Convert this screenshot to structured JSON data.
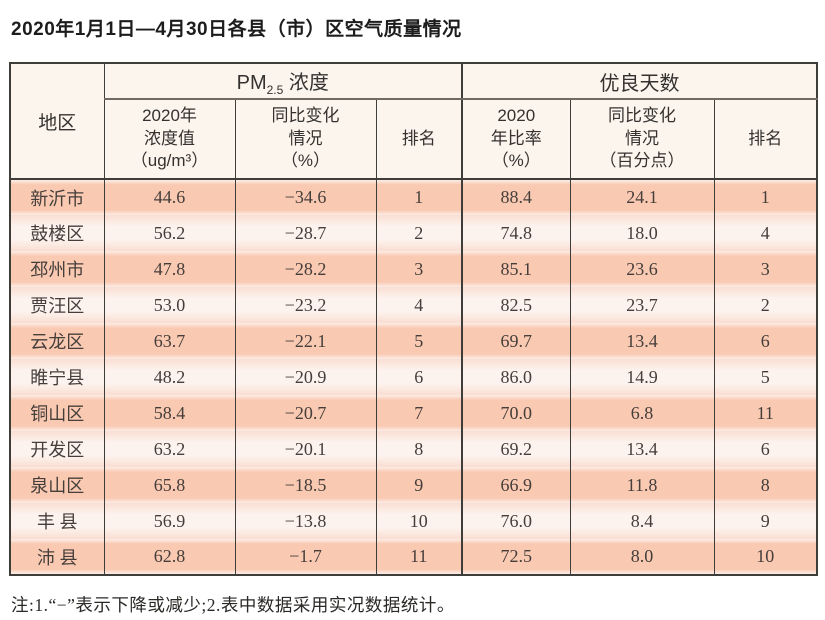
{
  "title": "2020年1月1日—4月30日各县（市）区空气质量情况",
  "note": "注:1.“−”表示下降或减少;2.表中数据采用实况数据统计。",
  "colors": {
    "row_odd_bg": "#f9c9b2",
    "row_even_bg": "#fdf3ee",
    "header_bg": "#fbf5ee",
    "border_dark": "#3f3d3a",
    "group_rule": "#716a63",
    "text_dark": "#34312e",
    "text_data": "#453e3a"
  },
  "table": {
    "region_header": "地区",
    "groups": {
      "pm": {
        "prefix": "PM",
        "subscript": "2.5",
        "suffix": " 浓度"
      },
      "good": {
        "label": "优良天数"
      }
    },
    "sub_headers": {
      "pm_value": "2020年\n浓度值\n（ug/m³）",
      "pm_change": "同比变化\n情况\n（%）",
      "pm_rank": "排名",
      "good_ratio": "2020\n年比率\n（%）",
      "good_change": "同比变化\n情况\n（百分点）",
      "good_rank": "排名"
    },
    "rows": [
      {
        "region": "新沂市",
        "pm_value": "44.6",
        "pm_change": "−34.6",
        "pm_rank": "1",
        "good_ratio": "88.4",
        "good_change": "24.1",
        "good_rank": "1"
      },
      {
        "region": "鼓楼区",
        "pm_value": "56.2",
        "pm_change": "−28.7",
        "pm_rank": "2",
        "good_ratio": "74.8",
        "good_change": "18.0",
        "good_rank": "4"
      },
      {
        "region": "邳州市",
        "pm_value": "47.8",
        "pm_change": "−28.2",
        "pm_rank": "3",
        "good_ratio": "85.1",
        "good_change": "23.6",
        "good_rank": "3"
      },
      {
        "region": "贾汪区",
        "pm_value": "53.0",
        "pm_change": "−23.2",
        "pm_rank": "4",
        "good_ratio": "82.5",
        "good_change": "23.7",
        "good_rank": "2"
      },
      {
        "region": "云龙区",
        "pm_value": "63.7",
        "pm_change": "−22.1",
        "pm_rank": "5",
        "good_ratio": "69.7",
        "good_change": "13.4",
        "good_rank": "6"
      },
      {
        "region": "睢宁县",
        "pm_value": "48.2",
        "pm_change": "−20.9",
        "pm_rank": "6",
        "good_ratio": "86.0",
        "good_change": "14.9",
        "good_rank": "5"
      },
      {
        "region": "铜山区",
        "pm_value": "58.4",
        "pm_change": "−20.7",
        "pm_rank": "7",
        "good_ratio": "70.0",
        "good_change": "6.8",
        "good_rank": "11"
      },
      {
        "region": "开发区",
        "pm_value": "63.2",
        "pm_change": "−20.1",
        "pm_rank": "8",
        "good_ratio": "69.2",
        "good_change": "13.4",
        "good_rank": "6"
      },
      {
        "region": "泉山区",
        "pm_value": "65.8",
        "pm_change": "−18.5",
        "pm_rank": "9",
        "good_ratio": "66.9",
        "good_change": "11.8",
        "good_rank": "8"
      },
      {
        "region": "丰 县",
        "pm_value": "56.9",
        "pm_change": "−13.8",
        "pm_rank": "10",
        "good_ratio": "76.0",
        "good_change": "8.4",
        "good_rank": "9"
      },
      {
        "region": "沛 县",
        "pm_value": "62.8",
        "pm_change": "−1.7",
        "pm_rank": "11",
        "good_ratio": "72.5",
        "good_change": "8.0",
        "good_rank": "10"
      }
    ]
  }
}
